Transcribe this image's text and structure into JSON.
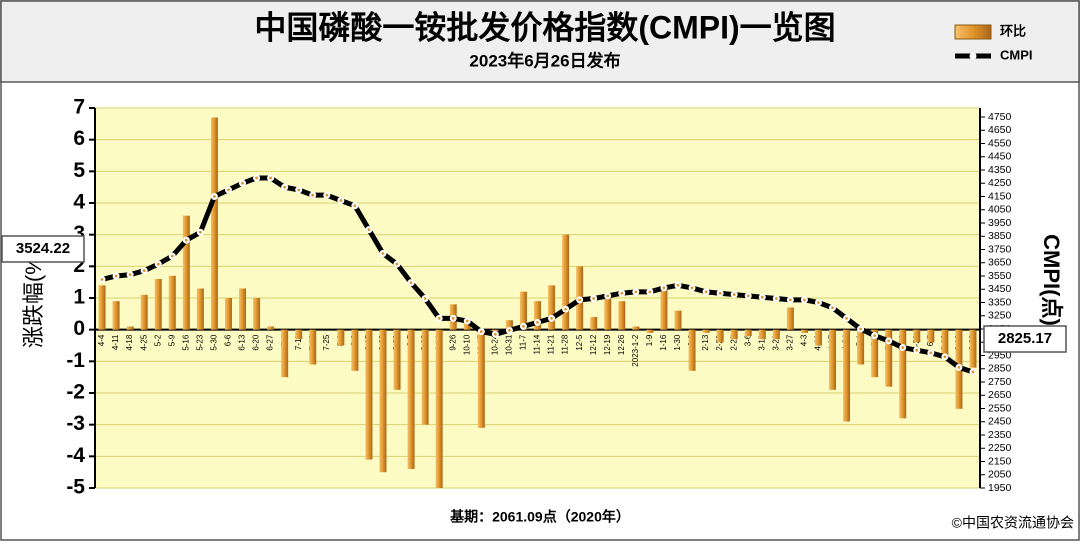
{
  "chart_data": {
    "type": "bar",
    "title": "中国磷酸一铵批发价格指数(CMPI)一览图",
    "subtitle": "2023年6月26日发布",
    "ylabel": "涨跌幅(%)",
    "y2label": "CMPI(点)",
    "footnote": "基期：2061.09点（2020年）",
    "source": "©中国农资流通协会",
    "categories": [
      "4-4",
      "4-11",
      "4-18",
      "4-25",
      "5-2",
      "5-9",
      "5-16",
      "5-23",
      "5-30",
      "6-6",
      "6-13",
      "6-20",
      "6-27",
      "7-4",
      "7-11",
      "7-18",
      "7-25",
      "8-1",
      "8-8",
      "8-15",
      "8-22",
      "8-29",
      "9-5",
      "9-12",
      "9-19",
      "9-26",
      "10-10",
      "10-17",
      "10-24",
      "10-31",
      "11-7",
      "11-14",
      "11-21",
      "11-28",
      "12-5",
      "12-12",
      "12-19",
      "12-26",
      "2023-1-2",
      "1-9",
      "1-16",
      "1-30",
      "2-6",
      "2-13",
      "2-20",
      "2-27",
      "3-6",
      "3-13",
      "3-20",
      "3-27",
      "4-3",
      "4-10",
      "4-17",
      "4-24",
      "5-1",
      "5-8",
      "5-15",
      "5-22",
      "5-29",
      "6-5",
      "6-12",
      "6-19",
      "6-26"
    ],
    "series": [
      {
        "name": "环比",
        "type": "bar",
        "color": "#e0962b",
        "values": [
          1.4,
          0.9,
          0.1,
          1.1,
          1.6,
          1.7,
          3.6,
          1.3,
          6.7,
          1.0,
          1.3,
          1.0,
          0.1,
          -1.5,
          -0.3,
          -1.1,
          0,
          -0.5,
          -1.3,
          -4.1,
          -4.5,
          -1.9,
          -4.4,
          -3.0,
          -5.0,
          0.8,
          0.3,
          -3.1,
          -0.1,
          0.3,
          1.2,
          0.9,
          1.4,
          3.0,
          2.0,
          0.4,
          1.1,
          0.9,
          0.1,
          -0.1,
          1.3,
          0.6,
          -1.3,
          -0.1,
          -0.4,
          -0.3,
          -0.2,
          -0.3,
          -0.3,
          0.7,
          -0.1,
          -0.5,
          -1.9,
          -2.9,
          -1.1,
          -1.5,
          -1.8,
          -2.8,
          -0.4,
          -0.4,
          -0.9,
          -2.5,
          -1.2
        ]
      },
      {
        "name": "CMPI",
        "type": "line",
        "color": "#000000",
        "axis": "y2",
        "values": [
          3524.22,
          3550,
          3560,
          3590,
          3640,
          3700,
          3820,
          3880,
          4150,
          4200,
          4250,
          4290,
          4290,
          4220,
          4200,
          4160,
          4160,
          4120,
          4080,
          3900,
          3720,
          3640,
          3500,
          3380,
          3230,
          3230,
          3210,
          3130,
          3110,
          3140,
          3170,
          3200,
          3230,
          3300,
          3370,
          3380,
          3400,
          3420,
          3430,
          3430,
          3460,
          3480,
          3460,
          3430,
          3420,
          3410,
          3400,
          3390,
          3380,
          3370,
          3370,
          3350,
          3310,
          3230,
          3150,
          3100,
          3060,
          3010,
          2990,
          2970,
          2940,
          2860,
          2825.17
        ]
      }
    ],
    "ylim": [
      -5,
      7
    ],
    "yticks": [
      -5,
      -4,
      -3,
      -2,
      -1,
      0,
      1,
      2,
      3,
      4,
      5,
      6,
      7
    ],
    "y2lim": [
      1950,
      4818
    ],
    "y2ticks": [
      1950,
      2050,
      2150,
      2250,
      2350,
      2450,
      2550,
      2650,
      2750,
      2850,
      2950,
      3050,
      3150,
      3250,
      3350,
      3450,
      3550,
      3650,
      3750,
      3850,
      3950,
      4050,
      4150,
      4250,
      4350,
      4450,
      4550,
      4650,
      4750
    ],
    "grid": true,
    "legend": "top-right"
  }
}
